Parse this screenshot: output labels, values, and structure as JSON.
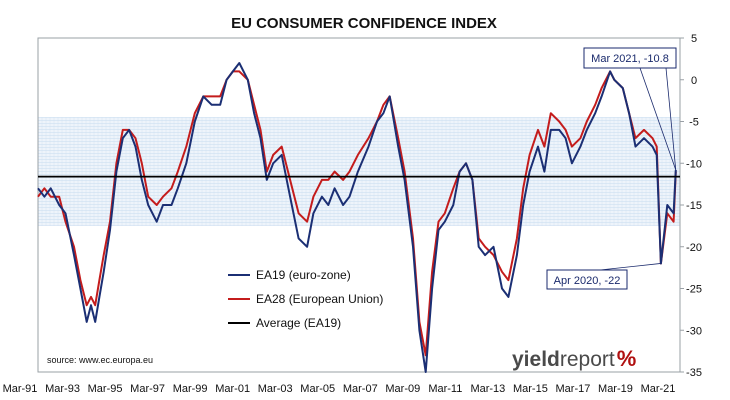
{
  "chart_data": {
    "type": "line",
    "title": "EU CONSUMER CONFIDENCE INDEX",
    "source": "source: www.ec.europa.eu",
    "logo": {
      "part1": "yield",
      "part2": "report",
      "part3": "%"
    },
    "x_ticks": [
      "Mar-91",
      "Mar-93",
      "Mar-95",
      "Mar-97",
      "Mar-99",
      "Mar-01",
      "Mar-03",
      "Mar-05",
      "Mar-07",
      "Mar-09",
      "Mar-11",
      "Mar-13",
      "Mar-15",
      "Mar-17",
      "Mar-19",
      "Mar-21"
    ],
    "xlim": [
      1990.9,
      2021.2
    ],
    "ylim": [
      -35,
      5
    ],
    "y_ticks": [
      5,
      0,
      -5,
      -10,
      -15,
      -20,
      -25,
      -30,
      -35
    ],
    "y_axis_side": "right",
    "band": {
      "from": -17.5,
      "to": -4.5
    },
    "average": -11.6,
    "colors": {
      "EA19": "#1b2f74",
      "EA28": "#c41c1c",
      "average": "#000000",
      "band": "#cfe0f1"
    },
    "legend": [
      {
        "key": "EA19",
        "label": "EA19 (euro-zone)"
      },
      {
        "key": "EA28",
        "label": "EA28 (European Union)"
      },
      {
        "key": "average",
        "label": "Average (EA19)"
      }
    ],
    "annotations": [
      {
        "text": "Mar 2021, -10.8",
        "x": 2021.0,
        "y": -10.8
      },
      {
        "text": "Apr 2020, -22",
        "x": 2020.3,
        "y": -22
      }
    ],
    "series": [
      {
        "name": "EA19 (euro-zone)",
        "key": "EA19",
        "points": [
          [
            1990.9,
            -13
          ],
          [
            1991.2,
            -14
          ],
          [
            1991.5,
            -13
          ],
          [
            1991.9,
            -15
          ],
          [
            1992.2,
            -16
          ],
          [
            1992.6,
            -21
          ],
          [
            1992.9,
            -25
          ],
          [
            1993.2,
            -29
          ],
          [
            1993.4,
            -27
          ],
          [
            1993.6,
            -29
          ],
          [
            1993.8,
            -26
          ],
          [
            1994.0,
            -23
          ],
          [
            1994.3,
            -18
          ],
          [
            1994.6,
            -11
          ],
          [
            1994.9,
            -7
          ],
          [
            1995.2,
            -6
          ],
          [
            1995.5,
            -8
          ],
          [
            1995.8,
            -12
          ],
          [
            1996.1,
            -15
          ],
          [
            1996.5,
            -17
          ],
          [
            1996.8,
            -15
          ],
          [
            1997.2,
            -15
          ],
          [
            1997.5,
            -13
          ],
          [
            1997.9,
            -10
          ],
          [
            1998.3,
            -5
          ],
          [
            1998.7,
            -2
          ],
          [
            1999.1,
            -3
          ],
          [
            1999.5,
            -3
          ],
          [
            1999.8,
            0
          ],
          [
            2000.1,
            1
          ],
          [
            2000.4,
            2
          ],
          [
            2000.8,
            0
          ],
          [
            2001.1,
            -4
          ],
          [
            2001.4,
            -7
          ],
          [
            2001.7,
            -12
          ],
          [
            2002.0,
            -10
          ],
          [
            2002.4,
            -9
          ],
          [
            2002.8,
            -14
          ],
          [
            2003.2,
            -19
          ],
          [
            2003.6,
            -20
          ],
          [
            2003.9,
            -16
          ],
          [
            2004.3,
            -14
          ],
          [
            2004.6,
            -15
          ],
          [
            2004.9,
            -13
          ],
          [
            2005.3,
            -15
          ],
          [
            2005.6,
            -14
          ],
          [
            2006.0,
            -11
          ],
          [
            2006.5,
            -8
          ],
          [
            2006.9,
            -5
          ],
          [
            2007.2,
            -4
          ],
          [
            2007.5,
            -2
          ],
          [
            2007.9,
            -8
          ],
          [
            2008.2,
            -12
          ],
          [
            2008.6,
            -20
          ],
          [
            2008.9,
            -30
          ],
          [
            2009.2,
            -35
          ],
          [
            2009.5,
            -25
          ],
          [
            2009.8,
            -18
          ],
          [
            2010.1,
            -17
          ],
          [
            2010.5,
            -15
          ],
          [
            2010.8,
            -11
          ],
          [
            2011.1,
            -10
          ],
          [
            2011.4,
            -12
          ],
          [
            2011.7,
            -20
          ],
          [
            2012.0,
            -21
          ],
          [
            2012.4,
            -20
          ],
          [
            2012.8,
            -25
          ],
          [
            2013.1,
            -26
          ],
          [
            2013.5,
            -21
          ],
          [
            2013.8,
            -15
          ],
          [
            2014.1,
            -11
          ],
          [
            2014.5,
            -8
          ],
          [
            2014.8,
            -11
          ],
          [
            2015.1,
            -6
          ],
          [
            2015.5,
            -6
          ],
          [
            2015.8,
            -7
          ],
          [
            2016.1,
            -10
          ],
          [
            2016.5,
            -8
          ],
          [
            2016.8,
            -6
          ],
          [
            2017.2,
            -4
          ],
          [
            2017.5,
            -2
          ],
          [
            2017.9,
            1
          ],
          [
            2018.1,
            0
          ],
          [
            2018.5,
            -1
          ],
          [
            2018.8,
            -4
          ],
          [
            2019.1,
            -8
          ],
          [
            2019.5,
            -7
          ],
          [
            2019.9,
            -8
          ],
          [
            2020.1,
            -9
          ],
          [
            2020.3,
            -22
          ],
          [
            2020.6,
            -15
          ],
          [
            2020.9,
            -16
          ],
          [
            2021.0,
            -10.8
          ]
        ]
      },
      {
        "name": "EA28 (European Union)",
        "key": "EA28",
        "points": [
          [
            1990.9,
            -14
          ],
          [
            1991.2,
            -13
          ],
          [
            1991.5,
            -14
          ],
          [
            1991.9,
            -14
          ],
          [
            1992.2,
            -17
          ],
          [
            1992.6,
            -20
          ],
          [
            1992.9,
            -24
          ],
          [
            1993.2,
            -27
          ],
          [
            1993.4,
            -26
          ],
          [
            1993.6,
            -27
          ],
          [
            1993.8,
            -24
          ],
          [
            1994.0,
            -21
          ],
          [
            1994.3,
            -17
          ],
          [
            1994.6,
            -10
          ],
          [
            1994.9,
            -6
          ],
          [
            1995.2,
            -6
          ],
          [
            1995.5,
            -7
          ],
          [
            1995.8,
            -10
          ],
          [
            1996.1,
            -14
          ],
          [
            1996.5,
            -15
          ],
          [
            1996.8,
            -14
          ],
          [
            1997.2,
            -13
          ],
          [
            1997.5,
            -11
          ],
          [
            1997.9,
            -8
          ],
          [
            1998.3,
            -4
          ],
          [
            1998.7,
            -2
          ],
          [
            1999.1,
            -2
          ],
          [
            1999.5,
            -2
          ],
          [
            1999.8,
            0
          ],
          [
            2000.1,
            1
          ],
          [
            2000.4,
            1
          ],
          [
            2000.8,
            0
          ],
          [
            2001.1,
            -3
          ],
          [
            2001.4,
            -6
          ],
          [
            2001.7,
            -11
          ],
          [
            2002.0,
            -9
          ],
          [
            2002.4,
            -8
          ],
          [
            2002.8,
            -12
          ],
          [
            2003.2,
            -16
          ],
          [
            2003.6,
            -17
          ],
          [
            2003.9,
            -14
          ],
          [
            2004.3,
            -12
          ],
          [
            2004.6,
            -12
          ],
          [
            2004.9,
            -11
          ],
          [
            2005.3,
            -12
          ],
          [
            2005.6,
            -11
          ],
          [
            2006.0,
            -9
          ],
          [
            2006.5,
            -7
          ],
          [
            2006.9,
            -5
          ],
          [
            2007.2,
            -3
          ],
          [
            2007.5,
            -2
          ],
          [
            2007.9,
            -7
          ],
          [
            2008.2,
            -11
          ],
          [
            2008.6,
            -19
          ],
          [
            2008.9,
            -29
          ],
          [
            2009.2,
            -33
          ],
          [
            2009.5,
            -23
          ],
          [
            2009.8,
            -17
          ],
          [
            2010.1,
            -16
          ],
          [
            2010.5,
            -13
          ],
          [
            2010.8,
            -11
          ],
          [
            2011.1,
            -10
          ],
          [
            2011.4,
            -12
          ],
          [
            2011.7,
            -19
          ],
          [
            2012.0,
            -20
          ],
          [
            2012.4,
            -21
          ],
          [
            2012.8,
            -23
          ],
          [
            2013.1,
            -24
          ],
          [
            2013.5,
            -19
          ],
          [
            2013.8,
            -13
          ],
          [
            2014.1,
            -9
          ],
          [
            2014.5,
            -6
          ],
          [
            2014.8,
            -8
          ],
          [
            2015.1,
            -4
          ],
          [
            2015.5,
            -5
          ],
          [
            2015.8,
            -6
          ],
          [
            2016.1,
            -8
          ],
          [
            2016.5,
            -7
          ],
          [
            2016.8,
            -5
          ],
          [
            2017.2,
            -3
          ],
          [
            2017.5,
            -1
          ],
          [
            2017.9,
            1
          ],
          [
            2018.1,
            0
          ],
          [
            2018.5,
            -1
          ],
          [
            2018.8,
            -4
          ],
          [
            2019.1,
            -7
          ],
          [
            2019.5,
            -6
          ],
          [
            2019.9,
            -7
          ],
          [
            2020.1,
            -8
          ],
          [
            2020.3,
            -22
          ],
          [
            2020.6,
            -16
          ],
          [
            2020.9,
            -17
          ],
          [
            2021.0,
            -11
          ]
        ]
      }
    ]
  }
}
